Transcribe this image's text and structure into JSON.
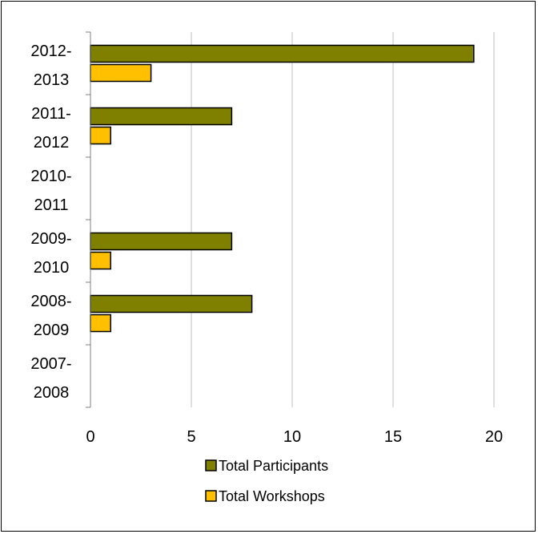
{
  "chart_data": {
    "type": "bar",
    "orientation": "horizontal",
    "categories": [
      "2007-2008",
      "2008-2009",
      "2009-2010",
      "2010-2011",
      "2011-2012",
      "2012-2013"
    ],
    "category_labels": [
      [
        "2007-",
        "2008"
      ],
      [
        "2008-",
        "2009"
      ],
      [
        "2009-",
        "2010"
      ],
      [
        "2010-",
        "2011"
      ],
      [
        "2011-",
        "2012"
      ],
      [
        "2012-",
        "2013"
      ]
    ],
    "series": [
      {
        "name": "Total Participants",
        "values": [
          0,
          8,
          7,
          0,
          7,
          19
        ],
        "color": "#808000"
      },
      {
        "name": "Total Workshops",
        "values": [
          0,
          1,
          1,
          0,
          1,
          3
        ],
        "color": "#FFC000"
      }
    ],
    "xlim": [
      0,
      20
    ],
    "xticks": [
      0,
      5,
      10,
      15,
      20
    ],
    "grid": "vertical",
    "legend_position": "bottom",
    "title": "",
    "xlabel": "",
    "ylabel": ""
  }
}
